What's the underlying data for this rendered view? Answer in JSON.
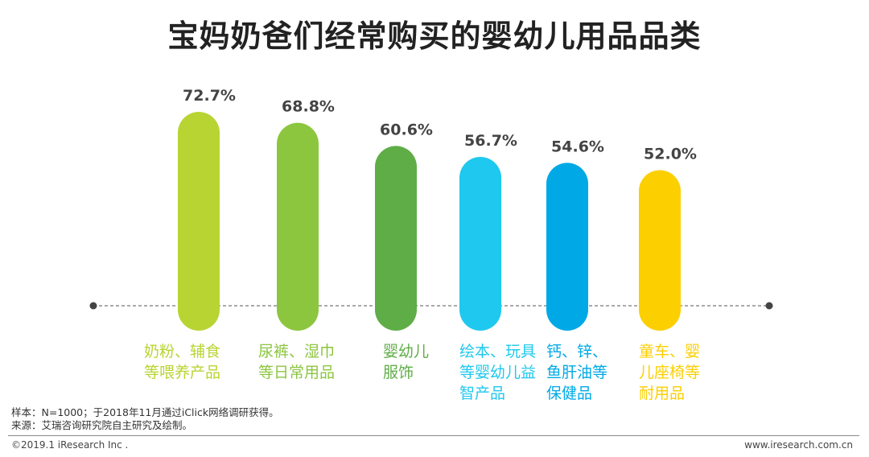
{
  "chart_data": {
    "type": "bar",
    "title": "宝妈奶爸们经常购买的婴幼儿用品品类",
    "unit": "%",
    "categories": [
      [
        "奶粉、辅食",
        "等喂养产品"
      ],
      [
        "尿裤、湿巾",
        "等日常用品"
      ],
      [
        "婴幼儿",
        "服饰"
      ],
      [
        "绘本、玩具",
        "等婴幼儿益",
        "智产品"
      ],
      [
        "钙、锌、",
        "鱼肝油等",
        "保健品"
      ],
      [
        "童车、婴",
        "儿座椅等",
        "耐用品"
      ]
    ],
    "values": [
      72.7,
      68.8,
      60.6,
      56.7,
      54.6,
      52.0
    ],
    "value_labels": [
      "72.7%",
      "68.8%",
      "60.6%",
      "56.7%",
      "54.6%",
      "52.0%"
    ],
    "colors": [
      "#b8d433",
      "#8cc63f",
      "#5fad47",
      "#1fc8ee",
      "#00a9e6",
      "#fccf00"
    ],
    "axis_color": "#555555"
  },
  "notes": {
    "sample": "样本：N=1000；于2018年11月通过iClick网络调研获得。",
    "source": "来源：艾瑞咨询研究院自主研究及绘制。"
  },
  "footer": {
    "copyright": "©2019.1 iResearch Inc .",
    "website": "www.iresearch.com.cn"
  }
}
